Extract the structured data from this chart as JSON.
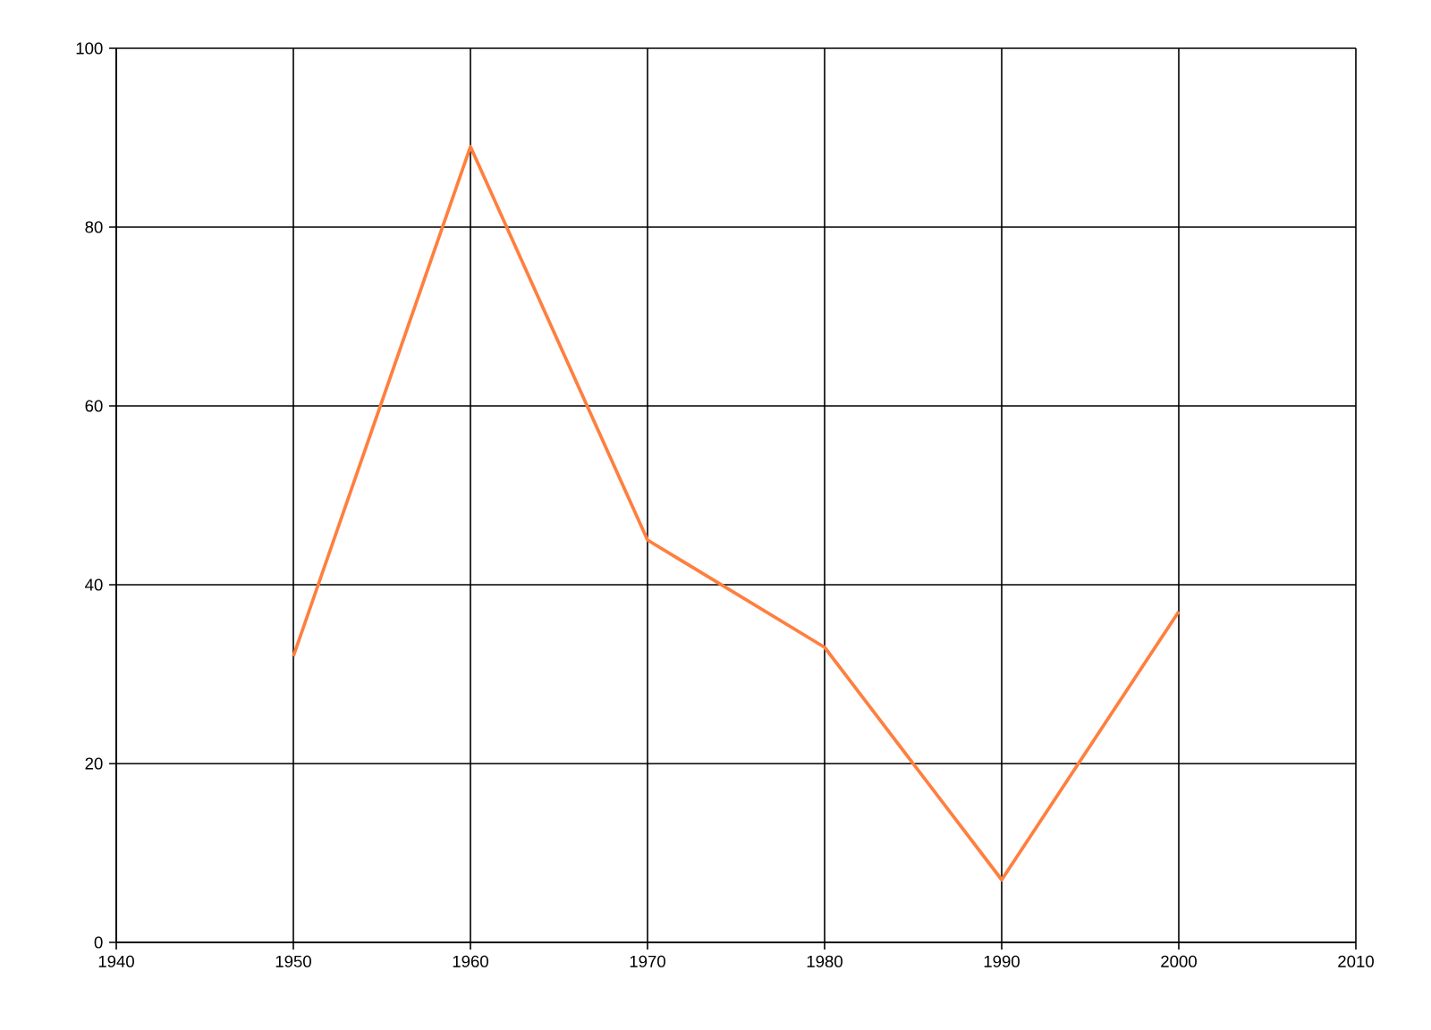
{
  "chart_data": {
    "type": "line",
    "x": [
      1950,
      1960,
      1970,
      1980,
      1990,
      2000
    ],
    "series": [
      {
        "color": "#ff7f3f",
        "values": [
          32,
          89,
          45,
          33,
          7,
          37
        ]
      }
    ],
    "xlim": [
      1940,
      2010
    ],
    "xticks": [
      1940,
      1950,
      1960,
      1970,
      1980,
      1990,
      2000,
      2010
    ],
    "ylim": [
      0,
      100
    ],
    "yticks": [
      0,
      20,
      40,
      60,
      80,
      100
    ],
    "grid": true,
    "marker": "none",
    "line_style": "solid"
  }
}
